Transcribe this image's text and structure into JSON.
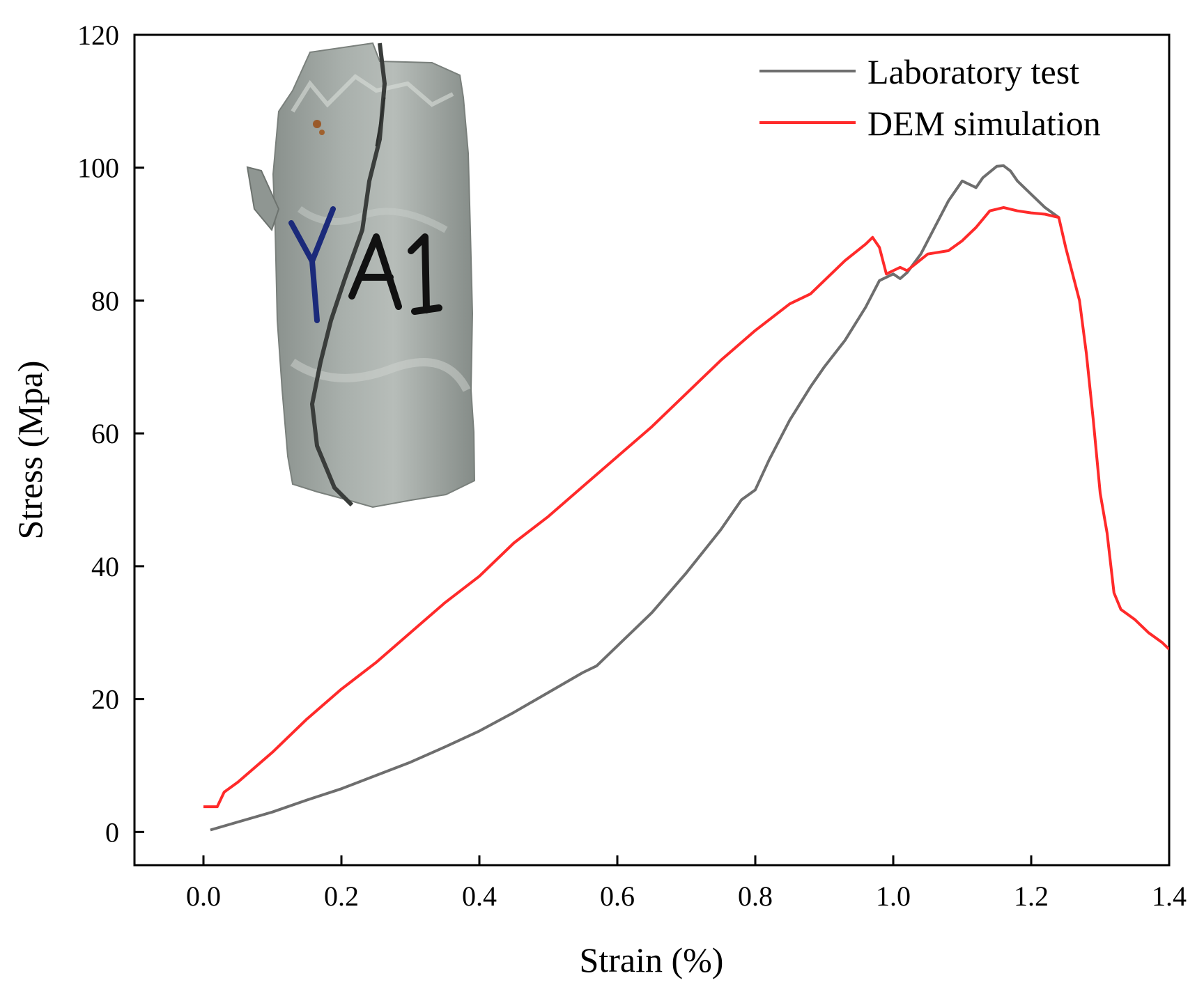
{
  "chart_data": {
    "type": "line",
    "title": "",
    "xlabel": "Strain (%)",
    "ylabel": "Stress (Mpa)",
    "xlim": [
      -0.1,
      1.4
    ],
    "ylim": [
      -5,
      120
    ],
    "xticks": [
      "0.0",
      "0.2",
      "0.4",
      "0.6",
      "0.8",
      "1.0",
      "1.2",
      "1.4"
    ],
    "xtick_values": [
      0.0,
      0.2,
      0.4,
      0.6,
      0.8,
      1.0,
      1.2,
      1.4
    ],
    "yticks": [
      "0",
      "20",
      "40",
      "60",
      "80",
      "100",
      "120"
    ],
    "ytick_values": [
      0,
      20,
      40,
      60,
      80,
      100,
      120
    ],
    "grid": false,
    "legend_position": "top-right",
    "inset_image": "photo of fractured cylindrical rock specimen labeled YA1",
    "inset_label": "YA1",
    "series": [
      {
        "name": "Laboratory test",
        "color": "#6e6e6e",
        "x": [
          0.01,
          0.05,
          0.1,
          0.15,
          0.2,
          0.25,
          0.3,
          0.35,
          0.4,
          0.45,
          0.5,
          0.55,
          0.57,
          0.6,
          0.65,
          0.7,
          0.75,
          0.78,
          0.8,
          0.82,
          0.85,
          0.88,
          0.9,
          0.93,
          0.96,
          0.98,
          1.0,
          1.01,
          1.02,
          1.04,
          1.06,
          1.08,
          1.1,
          1.12,
          1.13,
          1.15,
          1.16,
          1.17,
          1.18,
          1.2,
          1.22,
          1.24
        ],
        "y": [
          0.3,
          1.5,
          3.0,
          4.8,
          6.5,
          8.5,
          10.5,
          12.8,
          15.2,
          18.0,
          21.0,
          24.0,
          25.0,
          28.0,
          33.0,
          39.0,
          45.5,
          50.0,
          51.5,
          56.0,
          62.0,
          67.0,
          70.0,
          74.0,
          79.0,
          83.0,
          84.0,
          83.3,
          84.2,
          87.0,
          91.0,
          95.0,
          98.0,
          97.0,
          98.5,
          100.2,
          100.3,
          99.5,
          98.0,
          96.0,
          94.0,
          92.5
        ]
      },
      {
        "name": "DEM simulation",
        "color": "#ff2a2a",
        "x": [
          0.0,
          0.02,
          0.03,
          0.05,
          0.1,
          0.15,
          0.2,
          0.25,
          0.3,
          0.35,
          0.4,
          0.45,
          0.5,
          0.55,
          0.6,
          0.65,
          0.7,
          0.75,
          0.8,
          0.85,
          0.88,
          0.9,
          0.93,
          0.96,
          0.97,
          0.98,
          0.99,
          1.0,
          1.01,
          1.02,
          1.05,
          1.08,
          1.1,
          1.12,
          1.14,
          1.16,
          1.18,
          1.2,
          1.22,
          1.24,
          1.25,
          1.26,
          1.27,
          1.28,
          1.29,
          1.3,
          1.31,
          1.32,
          1.33,
          1.35,
          1.37,
          1.39,
          1.4
        ],
        "y": [
          3.8,
          3.8,
          6.0,
          7.5,
          12.0,
          17.0,
          21.5,
          25.5,
          30.0,
          34.5,
          38.5,
          43.5,
          47.5,
          52.0,
          56.5,
          61.0,
          66.0,
          71.0,
          75.5,
          79.5,
          81.0,
          83.0,
          86.0,
          88.5,
          89.5,
          88.0,
          84.0,
          84.5,
          85.0,
          84.5,
          87.0,
          87.5,
          89.0,
          91.0,
          93.5,
          94.0,
          93.5,
          93.2,
          93.0,
          92.5,
          88.0,
          84.0,
          80.0,
          72.0,
          62.0,
          51.0,
          45.0,
          36.0,
          33.5,
          32.0,
          30.0,
          28.5,
          27.5
        ]
      }
    ]
  }
}
